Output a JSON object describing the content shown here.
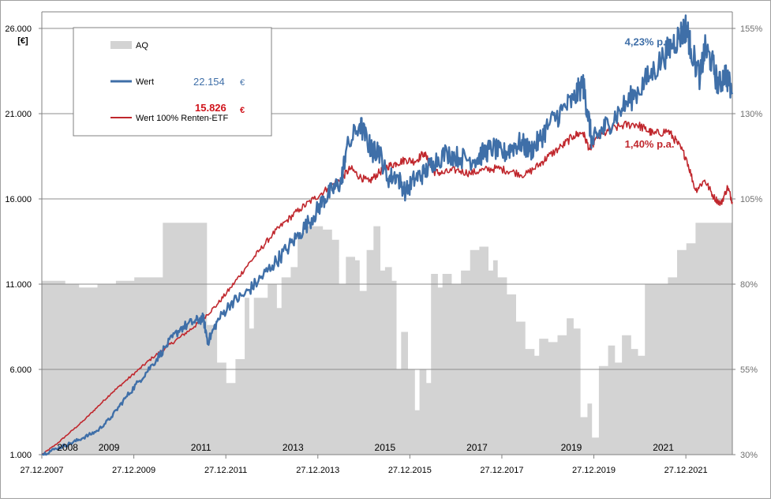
{
  "chart_data": {
    "type": "line",
    "title": "",
    "y_unit_label": "[€]",
    "y_left": {
      "range": [
        1000,
        26000
      ],
      "ticks": [
        {
          "value": 1000,
          "label": "1.000"
        },
        {
          "value": 6000,
          "label": "6.000"
        },
        {
          "value": 11000,
          "label": "11.000"
        },
        {
          "value": 16000,
          "label": "16.000"
        },
        {
          "value": 21000,
          "label": "21.000"
        },
        {
          "value": 26000,
          "label": "26.000"
        }
      ]
    },
    "y_right": {
      "range": [
        30,
        155
      ],
      "ticks": [
        {
          "value": 30,
          "label": "30%"
        },
        {
          "value": 55,
          "label": "55%"
        },
        {
          "value": 80,
          "label": "80%"
        },
        {
          "value": 105,
          "label": "105%"
        },
        {
          "value": 130,
          "label": "130%"
        },
        {
          "value": 155,
          "label": "155%"
        }
      ]
    },
    "x_range": [
      2007.99,
      2023.0
    ],
    "x_ticks": [
      {
        "value": 2007.99,
        "label": "27.12.2007"
      },
      {
        "value": 2009.99,
        "label": "27.12.2009"
      },
      {
        "value": 2011.99,
        "label": "27.12.2011"
      },
      {
        "value": 2013.99,
        "label": "27.12.2013"
      },
      {
        "value": 2015.99,
        "label": "27.12.2015"
      },
      {
        "value": 2017.99,
        "label": "27.12.2017"
      },
      {
        "value": 2019.99,
        "label": "27.12.2019"
      },
      {
        "value": 2021.99,
        "label": "27.12.2021"
      }
    ],
    "year_labels": [
      {
        "value": 2008.55,
        "label": "2008"
      },
      {
        "value": 2009.45,
        "label": "2009"
      },
      {
        "value": 2011.45,
        "label": "2011"
      },
      {
        "value": 2013.45,
        "label": "2013"
      },
      {
        "value": 2015.45,
        "label": "2015"
      },
      {
        "value": 2017.45,
        "label": "2017"
      },
      {
        "value": 2019.5,
        "label": "2019"
      },
      {
        "value": 2021.5,
        "label": "2021"
      }
    ],
    "legend": [
      {
        "name": "AQ",
        "kind": "area",
        "color": "#d3d3d3"
      },
      {
        "name": "Wert",
        "kind": "line",
        "color": "#3f6fa8",
        "final_value": "22.154",
        "final_unit": "€"
      },
      {
        "name": "Wert 100% Renten-ETF",
        "kind": "line",
        "color": "#c0272d",
        "final_value": "15.826",
        "final_unit": "€"
      }
    ],
    "annotations": [
      {
        "text": "4,23% p.a.",
        "color": "#3f6fa8",
        "x": 2021.2,
        "y": 25000
      },
      {
        "text": "1,40% p.a.",
        "color": "#c0272d",
        "x": 2021.2,
        "y": 19000
      }
    ],
    "series": [
      {
        "name": "AQ",
        "axis": "right",
        "color": "#d3d3d3",
        "x": [
          2007.99,
          2008.2,
          2008.5,
          2008.8,
          2008.85,
          2009.2,
          2009.6,
          2010.0,
          2010.4,
          2010.6,
          2010.62,
          2011.0,
          2011.55,
          2011.58,
          2011.8,
          2012.0,
          2012.2,
          2012.4,
          2012.5,
          2012.6,
          2012.9,
          2013.1,
          2013.2,
          2013.4,
          2013.55,
          2013.7,
          2013.9,
          2014.1,
          2014.3,
          2014.45,
          2014.6,
          2014.8,
          2014.9,
          2015.05,
          2015.2,
          2015.35,
          2015.45,
          2015.6,
          2015.7,
          2015.8,
          2015.95,
          2016.1,
          2016.2,
          2016.35,
          2016.45,
          2016.6,
          2016.7,
          2016.9,
          2017.1,
          2017.3,
          2017.5,
          2017.7,
          2017.8,
          2017.9,
          2018.1,
          2018.3,
          2018.5,
          2018.7,
          2018.8,
          2019.0,
          2019.2,
          2019.4,
          2019.55,
          2019.7,
          2019.85,
          2019.95,
          2020.1,
          2020.3,
          2020.45,
          2020.6,
          2020.8,
          2020.95,
          2021.1,
          2021.3,
          2021.6,
          2021.8,
          2022.0,
          2022.2,
          2022.5,
          2022.8,
          2023.0
        ],
        "values": [
          81,
          81,
          80,
          79,
          79,
          80,
          81,
          82,
          82,
          82,
          98,
          98,
          98,
          68,
          57,
          51,
          58,
          76,
          67,
          76,
          80,
          73,
          82,
          85,
          95,
          97,
          97,
          96,
          93,
          80,
          88,
          87,
          78,
          90,
          97,
          84,
          85,
          81,
          55,
          66,
          55,
          43,
          55,
          51,
          83,
          79,
          83,
          80,
          84,
          90,
          91,
          84,
          87,
          82,
          77,
          69,
          61,
          59,
          64,
          63,
          65,
          70,
          67,
          41,
          45,
          35,
          56,
          62,
          57,
          65,
          61,
          59,
          80,
          80,
          82,
          90,
          92,
          98,
          98,
          98,
          98
        ]
      },
      {
        "name": "Wert",
        "axis": "left",
        "color": "#3f6fa8",
        "x": [
          2007.99,
          2008.3,
          2008.6,
          2008.9,
          2009.2,
          2009.5,
          2009.8,
          2010.1,
          2010.4,
          2010.7,
          2011.0,
          2011.3,
          2011.5,
          2011.6,
          2011.8,
          2012.1,
          2012.4,
          2012.7,
          2013.0,
          2013.3,
          2013.6,
          2013.9,
          2014.1,
          2014.3,
          2014.5,
          2014.6,
          2014.9,
          2015.1,
          2015.2,
          2015.3,
          2015.5,
          2015.7,
          2015.9,
          2016.1,
          2016.3,
          2016.5,
          2016.8,
          2017.1,
          2017.4,
          2017.6,
          2017.8,
          2018.0,
          2018.2,
          2018.4,
          2018.6,
          2018.8,
          2019.0,
          2019.3,
          2019.55,
          2019.75,
          2019.85,
          2019.95,
          2020.1,
          2020.3,
          2020.6,
          2020.9,
          2021.2,
          2021.5,
          2021.7,
          2021.9,
          2022.0,
          2022.1,
          2022.3,
          2022.4,
          2022.55,
          2022.7,
          2022.85,
          2023.0
        ],
        "values": [
          1000,
          1350,
          1650,
          2000,
          2400,
          3200,
          4300,
          5300,
          6300,
          7400,
          8400,
          8800,
          9000,
          7600,
          8800,
          9900,
          10400,
          11200,
          12100,
          13000,
          14000,
          15000,
          15900,
          16500,
          17000,
          18800,
          20400,
          19200,
          18700,
          19000,
          17200,
          17400,
          16400,
          17200,
          17500,
          18200,
          18700,
          18400,
          18300,
          18700,
          19000,
          18600,
          19000,
          19300,
          18800,
          19400,
          20300,
          21200,
          21800,
          22800,
          21200,
          19300,
          19800,
          20400,
          21300,
          22200,
          23200,
          24300,
          25100,
          25700,
          26100,
          24800,
          23100,
          24800,
          24100,
          22600,
          23400,
          22154
        ]
      },
      {
        "name": "Wert 100% Renten-ETF",
        "axis": "left",
        "color": "#c0272d",
        "x": [
          2007.99,
          2008.3,
          2008.6,
          2008.9,
          2009.2,
          2009.5,
          2009.8,
          2010.1,
          2010.4,
          2010.7,
          2011.0,
          2011.3,
          2011.5,
          2011.8,
          2012.1,
          2012.4,
          2012.7,
          2013.0,
          2013.3,
          2013.6,
          2013.9,
          2014.2,
          2014.5,
          2014.7,
          2014.9,
          2015.1,
          2015.3,
          2015.5,
          2015.7,
          2015.9,
          2016.1,
          2016.3,
          2016.5,
          2016.7,
          2017.0,
          2017.3,
          2017.6,
          2017.9,
          2018.2,
          2018.5,
          2018.8,
          2019.0,
          2019.3,
          2019.55,
          2019.75,
          2019.9,
          2020.0,
          2020.3,
          2020.6,
          2020.9,
          2021.1,
          2021.3,
          2021.6,
          2021.8,
          2022.0,
          2022.2,
          2022.4,
          2022.6,
          2022.75,
          2022.9,
          2023.0
        ],
        "values": [
          1000,
          1600,
          2300,
          3000,
          3800,
          4600,
          5300,
          6000,
          6700,
          7300,
          7900,
          8500,
          9000,
          9800,
          10800,
          11900,
          12900,
          13900,
          14700,
          15400,
          16000,
          16600,
          17200,
          17800,
          17300,
          17000,
          17500,
          17900,
          18100,
          18300,
          18200,
          18700,
          17600,
          17500,
          17700,
          17500,
          17700,
          17800,
          17600,
          17400,
          18000,
          18500,
          19100,
          19700,
          19900,
          18900,
          19400,
          20000,
          20300,
          20400,
          20100,
          19800,
          20000,
          19300,
          18400,
          16500,
          17100,
          16100,
          15700,
          16700,
          15826
        ]
      }
    ]
  }
}
